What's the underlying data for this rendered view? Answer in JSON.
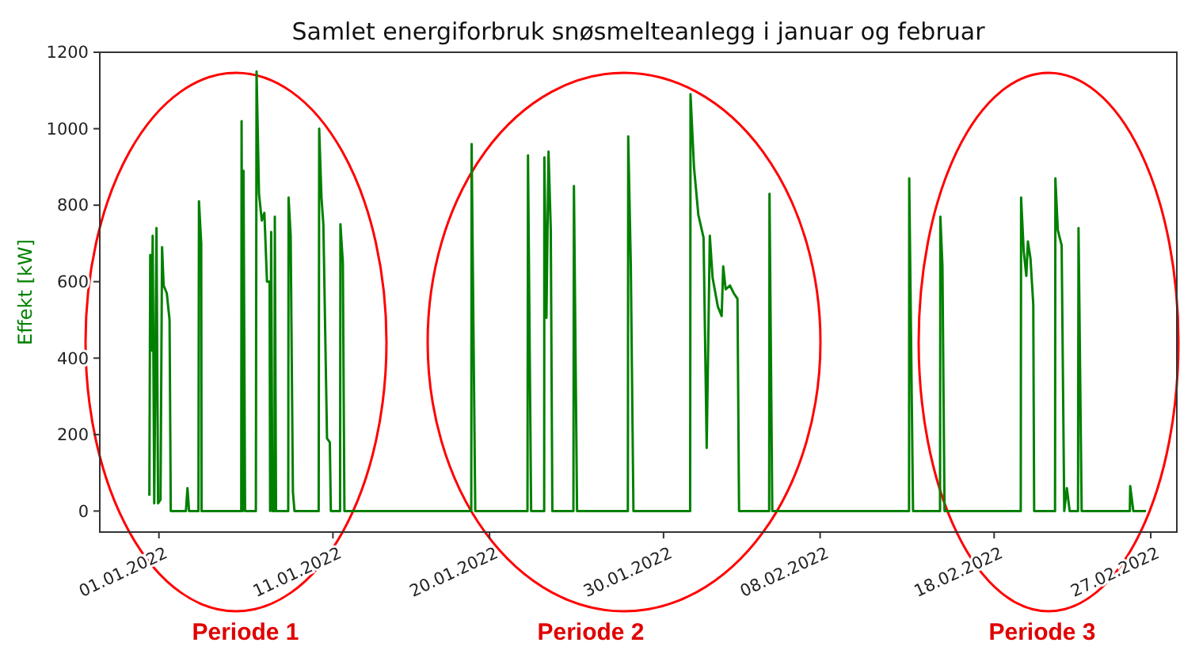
{
  "chart_data": {
    "type": "line",
    "title": "Samlet energiforbruk snøsmelteanlegg i januar og februar",
    "ylabel": "Effekt [kW]",
    "annotations": [
      "Periode 1",
      "Periode 2",
      "Periode 3"
    ],
    "xlim": [
      "2021-12-28T14:24",
      "2022-02-28T12:00"
    ],
    "ylim": [
      -55,
      1200
    ],
    "yticks": [
      0,
      200,
      400,
      600,
      800,
      1000,
      1200
    ],
    "xticks": [
      {
        "value": "2022-01-01",
        "label": "01.01.2022"
      },
      {
        "value": "2022-01-11",
        "label": "11.01.2022"
      },
      {
        "value": "2022-01-20",
        "label": "20.01.2022"
      },
      {
        "value": "2022-01-30",
        "label": "30.01.2022"
      },
      {
        "value": "2022-02-08",
        "label": "08.02.2022"
      },
      {
        "value": "2022-02-18",
        "label": "18.02.2022"
      },
      {
        "value": "2022-02-27",
        "label": "27.02.2022"
      }
    ],
    "grid": false,
    "series": [
      {
        "color": "#008000",
        "x": [
          "2021-12-31T10:48",
          "2021-12-31T12:00",
          "2021-12-31T13:41",
          "2021-12-31T15:22",
          "2021-12-31T17:31",
          "2021-12-31T20:38",
          "2021-12-31T22:48",
          "2022-01-01T02:10",
          "2022-01-01T04:19",
          "2022-01-01T06:29",
          "2022-01-01T10:48",
          "2022-01-01T14:38",
          "2022-01-01T16:19",
          "2022-01-02T13:12",
          "2022-01-02T15:22",
          "2022-01-02T17:31",
          "2022-01-03T06:29",
          "2022-01-03T07:12",
          "2022-01-03T10:19",
          "2022-01-03T10:48",
          "2022-01-05T17:31",
          "2022-01-05T18:00",
          "2022-01-05T19:41",
          "2022-01-05T20:38",
          "2022-01-05T22:48",
          "2022-01-06T13:41",
          "2022-01-06T14:38",
          "2022-01-06T18:00",
          "2022-01-06T21:50",
          "2022-01-07T01:26",
          "2022-01-07T05:02",
          "2022-01-07T08:38",
          "2022-01-07T09:22",
          "2022-01-07T10:48",
          "2022-01-07T12:29",
          "2022-01-07T15:22",
          "2022-01-07T15:50",
          "2022-01-07T17:31",
          "2022-01-08T10:19",
          "2022-01-08T10:48",
          "2022-01-08T13:41",
          "2022-01-08T16:48",
          "2022-01-08T18:58",
          "2022-01-10T04:19",
          "2022-01-10T05:02",
          "2022-01-10T08:10",
          "2022-01-10T10:48",
          "2022-01-10T15:50",
          "2022-01-10T19:41",
          "2022-01-10T21:07",
          "2022-01-11T09:50",
          "2022-01-11T10:19",
          "2022-01-11T13:41",
          "2022-01-11T15:50",
          "2022-01-18T22:48",
          "2022-01-18T23:17",
          "2022-01-19T04:19",
          "2022-01-22T04:19",
          "2022-01-22T05:02",
          "2022-01-22T09:22",
          "2022-01-23T03:22",
          "2022-01-23T03:36",
          "2022-01-23T06:29",
          "2022-01-23T09:22",
          "2022-01-23T12:29",
          "2022-01-23T14:38",
          "2022-01-24T19:41",
          "2022-01-24T20:24",
          "2022-01-25T00:43",
          "2022-01-27T22:48",
          "2022-01-27T23:17",
          "2022-01-28T02:53",
          "2022-01-28T06:29",
          "2022-01-31T12:43",
          "2022-01-31T13:12",
          "2022-01-31T18:00",
          "2022-02-01T00:00",
          "2022-02-01T07:12",
          "2022-02-01T10:19",
          "2022-02-01T11:31",
          "2022-02-01T15:50",
          "2022-02-01T19:41",
          "2022-02-02T02:53",
          "2022-02-02T08:10",
          "2022-02-02T10:19",
          "2022-02-02T13:41",
          "2022-02-02T19:41",
          "2022-02-03T00:43",
          "2022-02-03T06:00",
          "2022-02-03T08:10",
          "2022-02-05T01:41",
          "2022-02-05T02:10",
          "2022-02-05T06:00",
          "2022-02-13T02:38",
          "2022-02-13T02:53",
          "2022-02-13T08:10",
          "2022-02-14T21:22",
          "2022-02-14T21:50",
          "2022-02-15T00:43",
          "2022-02-15T03:36",
          "2022-02-19T12:43",
          "2022-02-19T13:12",
          "2022-02-19T16:48",
          "2022-02-19T20:24",
          "2022-02-19T22:34",
          "2022-02-20T02:10",
          "2022-02-20T06:00",
          "2022-02-20T07:12",
          "2022-02-21T12:00",
          "2022-02-21T12:29",
          "2022-02-21T15:50",
          "2022-02-21T21:07",
          "2022-02-22T00:43",
          "2022-02-22T04:19",
          "2022-02-22T08:10",
          "2022-02-22T19:41",
          "2022-02-22T20:24",
          "2022-02-23T00:43",
          "2022-02-25T19:12",
          "2022-02-25T19:41",
          "2022-02-26T00:00",
          "2022-02-26T17:31"
        ],
        "values": [
          40,
          670,
          420,
          720,
          20,
          740,
          20,
          30,
          690,
          590,
          570,
          500,
          0,
          0,
          60,
          0,
          0,
          810,
          700,
          0,
          0,
          1020,
          0,
          890,
          0,
          0,
          1150,
          830,
          760,
          780,
          600,
          600,
          0,
          730,
          0,
          0,
          770,
          0,
          0,
          820,
          720,
          50,
          0,
          0,
          1000,
          820,
          750,
          190,
          180,
          0,
          0,
          750,
          650,
          0,
          0,
          960,
          0,
          0,
          930,
          0,
          0,
          925,
          505,
          940,
          735,
          0,
          0,
          850,
          0,
          0,
          980,
          640,
          0,
          0,
          1090,
          900,
          775,
          715,
          320,
          165,
          720,
          610,
          535,
          510,
          640,
          580,
          590,
          570,
          555,
          0,
          0,
          830,
          0,
          0,
          870,
          0,
          0,
          770,
          640,
          0,
          0,
          820,
          680,
          615,
          705,
          660,
          540,
          0,
          0,
          870,
          735,
          695,
          0,
          60,
          0,
          0,
          740,
          0,
          0,
          65,
          0,
          0
        ]
      }
    ]
  }
}
